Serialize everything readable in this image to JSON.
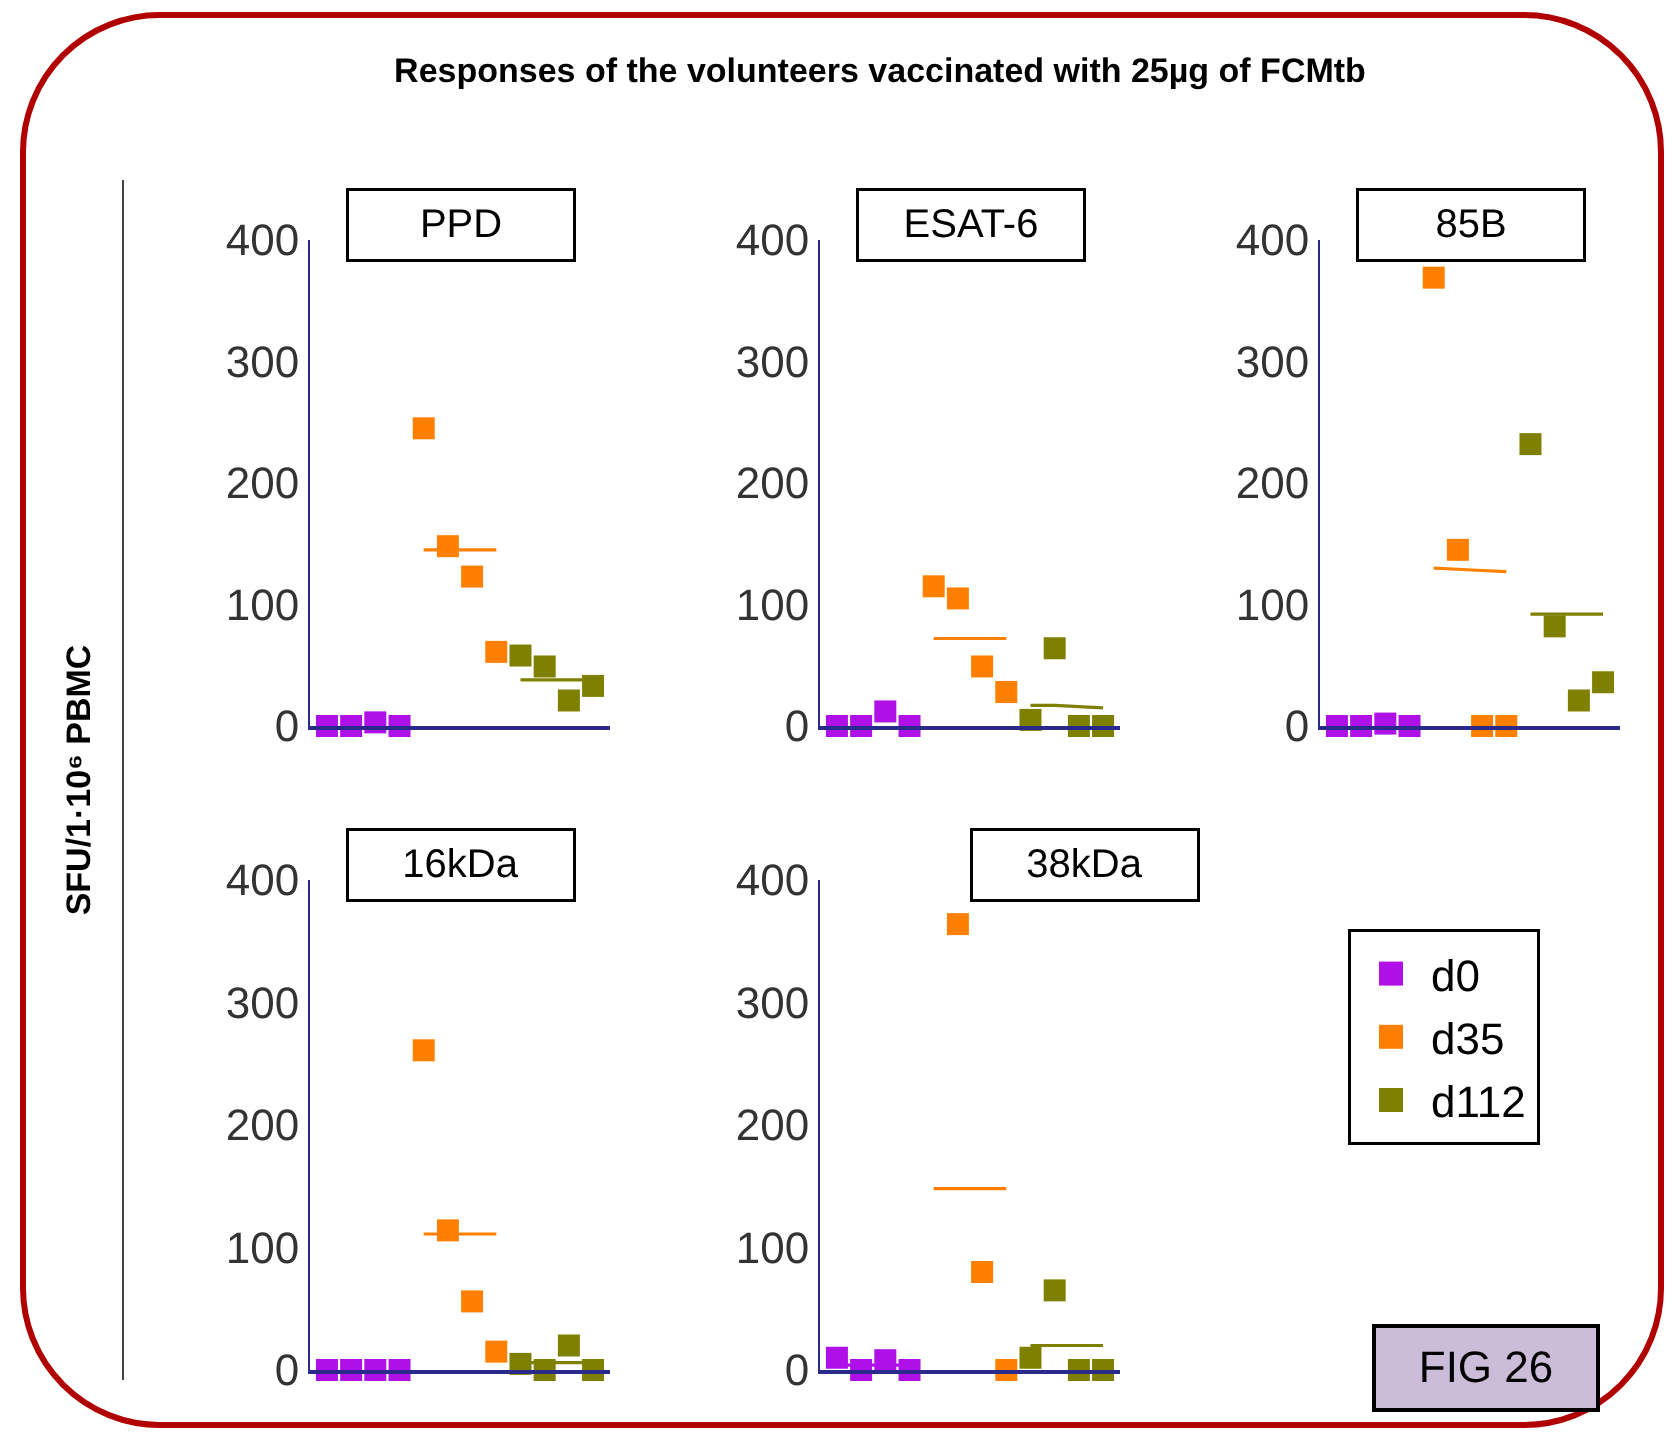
{
  "chart_data": [
    {
      "type": "other",
      "title": "Responses of the volunteers vaccinated with 25µg of FCMtb",
      "ylabel": "SFU/1·10⁶ PBMC",
      "annotations": [
        "FIG 26"
      ]
    },
    {
      "type": "scatter",
      "title": "PPD",
      "categories": [
        null,
        null,
        null,
        null,
        null,
        null,
        null,
        null,
        null,
        null,
        null,
        null
      ],
      "ylim": [
        0,
        400
      ],
      "yticks": [
        0,
        100,
        200,
        300,
        400
      ],
      "tick_labels": "y",
      "marker": "square",
      "series": [
        {
          "color": "#b010e8",
          "values": [
            0,
            0,
            3,
            0,
            null,
            null,
            null,
            null,
            null,
            null,
            null,
            null
          ]
        },
        {
          "color": "#ff8000",
          "values": [
            null,
            null,
            null,
            null,
            245,
            148,
            123,
            61,
            null,
            null,
            null,
            null
          ]
        },
        {
          "color": "#808000",
          "values": [
            null,
            null,
            null,
            null,
            null,
            null,
            null,
            null,
            58,
            49,
            21,
            33
          ]
        },
        {
          "type": "line",
          "marker": "none",
          "color": "#ff8000",
          "values": [
            null,
            null,
            null,
            null,
            145,
            145,
            145,
            145,
            null,
            null,
            null,
            null
          ]
        },
        {
          "type": "line",
          "marker": "none",
          "color": "#808000",
          "values": [
            null,
            null,
            null,
            null,
            null,
            null,
            null,
            null,
            38,
            38,
            38,
            38
          ]
        }
      ]
    },
    {
      "type": "scatter",
      "title": "ESAT-6",
      "categories": [
        null,
        null,
        null,
        null,
        null,
        null,
        null,
        null,
        null,
        null,
        null,
        null
      ],
      "ylim": [
        0,
        400
      ],
      "yticks": [
        0,
        100,
        200,
        300,
        400
      ],
      "tick_labels": "y",
      "marker": "square",
      "series": [
        {
          "color": "#b010e8",
          "values": [
            0,
            0,
            12,
            0,
            null,
            null,
            null,
            null,
            null,
            null,
            null,
            null
          ]
        },
        {
          "color": "#ff8000",
          "values": [
            null,
            null,
            null,
            null,
            115,
            105,
            49,
            28,
            null,
            null,
            null,
            null
          ]
        },
        {
          "color": "#808000",
          "values": [
            null,
            null,
            null,
            null,
            null,
            null,
            null,
            null,
            5,
            64,
            0,
            0
          ]
        },
        {
          "type": "line",
          "marker": "none",
          "color": "#ff8000",
          "values": [
            null,
            null,
            null,
            null,
            72,
            72,
            72,
            72,
            null,
            null,
            null,
            null
          ]
        },
        {
          "type": "line",
          "marker": "none",
          "color": "#808000",
          "values": [
            null,
            null,
            null,
            null,
            null,
            null,
            null,
            null,
            17,
            17,
            16,
            15
          ]
        }
      ]
    },
    {
      "type": "scatter",
      "title": "85B",
      "categories": [
        null,
        null,
        null,
        null,
        null,
        null,
        null,
        null,
        null,
        null,
        null,
        null
      ],
      "ylim": [
        0,
        400
      ],
      "yticks": [
        0,
        100,
        200,
        300,
        400
      ],
      "tick_labels": "y",
      "marker": "square",
      "series": [
        {
          "color": "#b010e8",
          "values": [
            0,
            0,
            2,
            0,
            null,
            null,
            null,
            null,
            null,
            null,
            null,
            null
          ]
        },
        {
          "color": "#ff8000",
          "values": [
            null,
            null,
            null,
            null,
            369,
            145,
            0,
            0,
            null,
            null,
            null,
            null
          ]
        },
        {
          "color": "#808000",
          "values": [
            null,
            null,
            null,
            null,
            null,
            null,
            null,
            null,
            232,
            82,
            21,
            36
          ]
        },
        {
          "type": "line",
          "marker": "none",
          "color": "#ff8000",
          "values": [
            null,
            null,
            null,
            null,
            130,
            129,
            128,
            127,
            null,
            null,
            null,
            null
          ]
        },
        {
          "type": "line",
          "marker": "none",
          "color": "#808000",
          "values": [
            null,
            null,
            null,
            null,
            null,
            null,
            null,
            null,
            92,
            92,
            92,
            92
          ]
        }
      ]
    },
    {
      "type": "scatter",
      "title": "16kDa",
      "categories": [
        null,
        null,
        null,
        null,
        null,
        null,
        null,
        null,
        null,
        null,
        null,
        null
      ],
      "ylim": [
        0,
        400
      ],
      "yticks": [
        0,
        100,
        200,
        300,
        400
      ],
      "tick_labels": "y",
      "marker": "square",
      "series": [
        {
          "color": "#b010e8",
          "values": [
            0,
            0,
            0,
            0,
            null,
            null,
            null,
            null,
            null,
            null,
            null,
            null
          ]
        },
        {
          "color": "#ff8000",
          "values": [
            null,
            null,
            null,
            null,
            261,
            114,
            56,
            15,
            null,
            null,
            null,
            null
          ]
        },
        {
          "color": "#808000",
          "values": [
            null,
            null,
            null,
            null,
            null,
            null,
            null,
            null,
            5,
            0,
            20,
            0
          ]
        },
        {
          "type": "line",
          "marker": "none",
          "color": "#ff8000",
          "values": [
            null,
            null,
            null,
            null,
            111,
            111,
            111,
            111,
            null,
            null,
            null,
            null
          ]
        },
        {
          "type": "line",
          "marker": "none",
          "color": "#808000",
          "values": [
            null,
            null,
            null,
            null,
            null,
            null,
            null,
            null,
            6,
            6,
            6,
            6
          ]
        }
      ]
    },
    {
      "type": "scatter",
      "title": "38kDa",
      "categories": [
        null,
        null,
        null,
        null,
        null,
        null,
        null,
        null,
        null,
        null,
        null,
        null
      ],
      "ylim": [
        0,
        400
      ],
      "yticks": [
        0,
        100,
        200,
        300,
        400
      ],
      "tick_labels": "y",
      "marker": "square",
      "legend": "right",
      "series": [
        {
          "name": "d0",
          "color": "#b010e8",
          "values": [
            10,
            0,
            8,
            0,
            null,
            null,
            null,
            null,
            null,
            null,
            null,
            null
          ]
        },
        {
          "name": "d35",
          "color": "#ff8000",
          "values": [
            null,
            null,
            null,
            null,
            null,
            364,
            80,
            0,
            null,
            null,
            null,
            null
          ]
        },
        {
          "name": "d112",
          "color": "#808000",
          "values": [
            null,
            null,
            null,
            null,
            null,
            null,
            null,
            null,
            10,
            65,
            0,
            0
          ]
        },
        {
          "type": "line",
          "marker": "none",
          "color": "#b010e8",
          "values": [
            4,
            4,
            4,
            4,
            null,
            null,
            null,
            null,
            null,
            null,
            null,
            null
          ]
        },
        {
          "type": "line",
          "marker": "none",
          "color": "#ff8000",
          "values": [
            null,
            null,
            null,
            null,
            148,
            148,
            148,
            148,
            null,
            null,
            null,
            null
          ]
        },
        {
          "type": "line",
          "marker": "none",
          "color": "#808000",
          "values": [
            null,
            null,
            null,
            null,
            null,
            null,
            null,
            null,
            20,
            20,
            20,
            20
          ]
        }
      ]
    }
  ]
}
